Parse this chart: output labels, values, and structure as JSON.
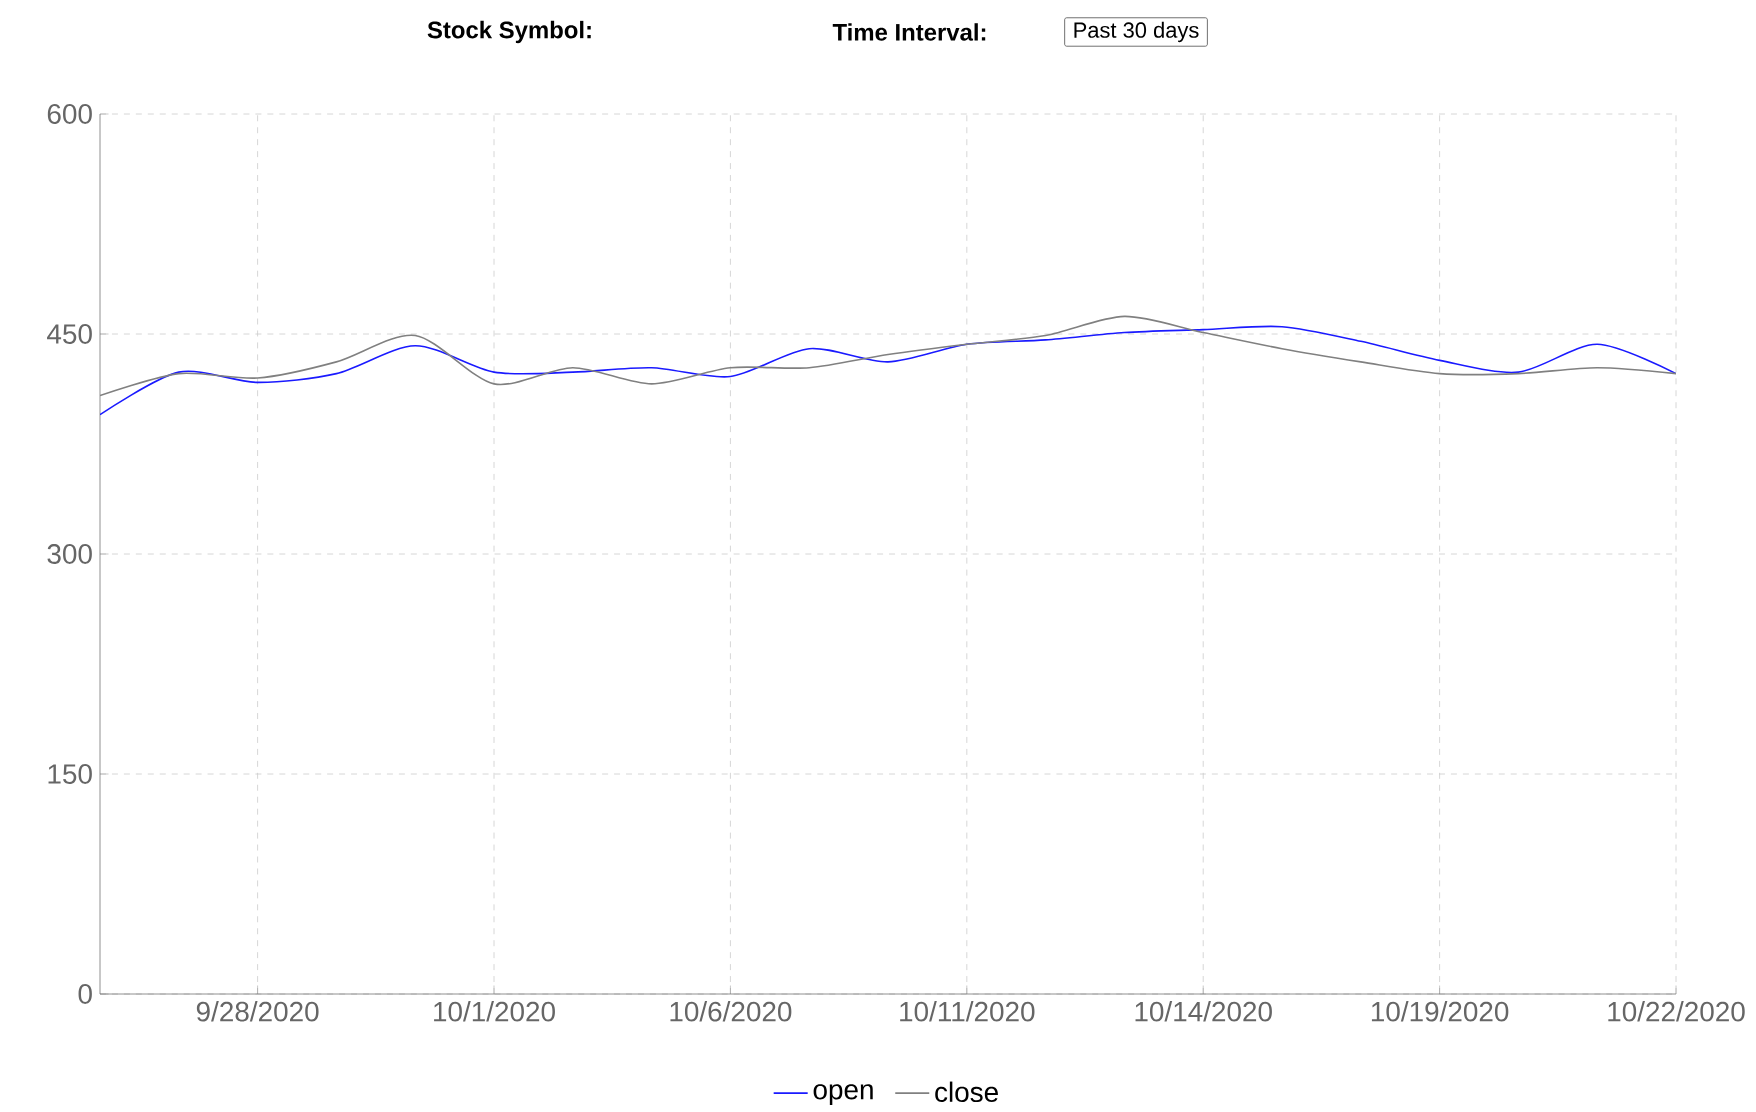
{
  "chart_data": {
    "type": "line",
    "annotations": [
      "Stock Symbol:",
      "Time Interval:",
      "Past 30 days"
    ],
    "categories": [
      null,
      null,
      "9/28/2020",
      null,
      null,
      "10/1/2020",
      null,
      null,
      "10/6/2020",
      null,
      null,
      "10/11/2020",
      null,
      null,
      "10/14/2020",
      null,
      null,
      "10/19/2020",
      null,
      null,
      "10/22/2020"
    ],
    "series": [
      {
        "name": "open",
        "color": "#1a1aff",
        "values": [
          395,
          424,
          417,
          423,
          442,
          424,
          424,
          427,
          421,
          440,
          431,
          443,
          446,
          451,
          453,
          455,
          445,
          432,
          424,
          443,
          423
        ]
      },
      {
        "name": "close",
        "color": "#808080",
        "values": [
          408,
          423,
          420,
          431,
          449,
          416,
          427,
          416,
          427,
          427,
          436,
          443,
          449,
          462,
          451,
          440,
          431,
          423,
          423,
          427,
          423
        ]
      }
    ],
    "ylim": [
      0,
      600
    ],
    "yticks": [
      0,
      150,
      300,
      450,
      600
    ],
    "grid": true,
    "legend": "bottom",
    "marker": "none",
    "line_style": "solid"
  }
}
